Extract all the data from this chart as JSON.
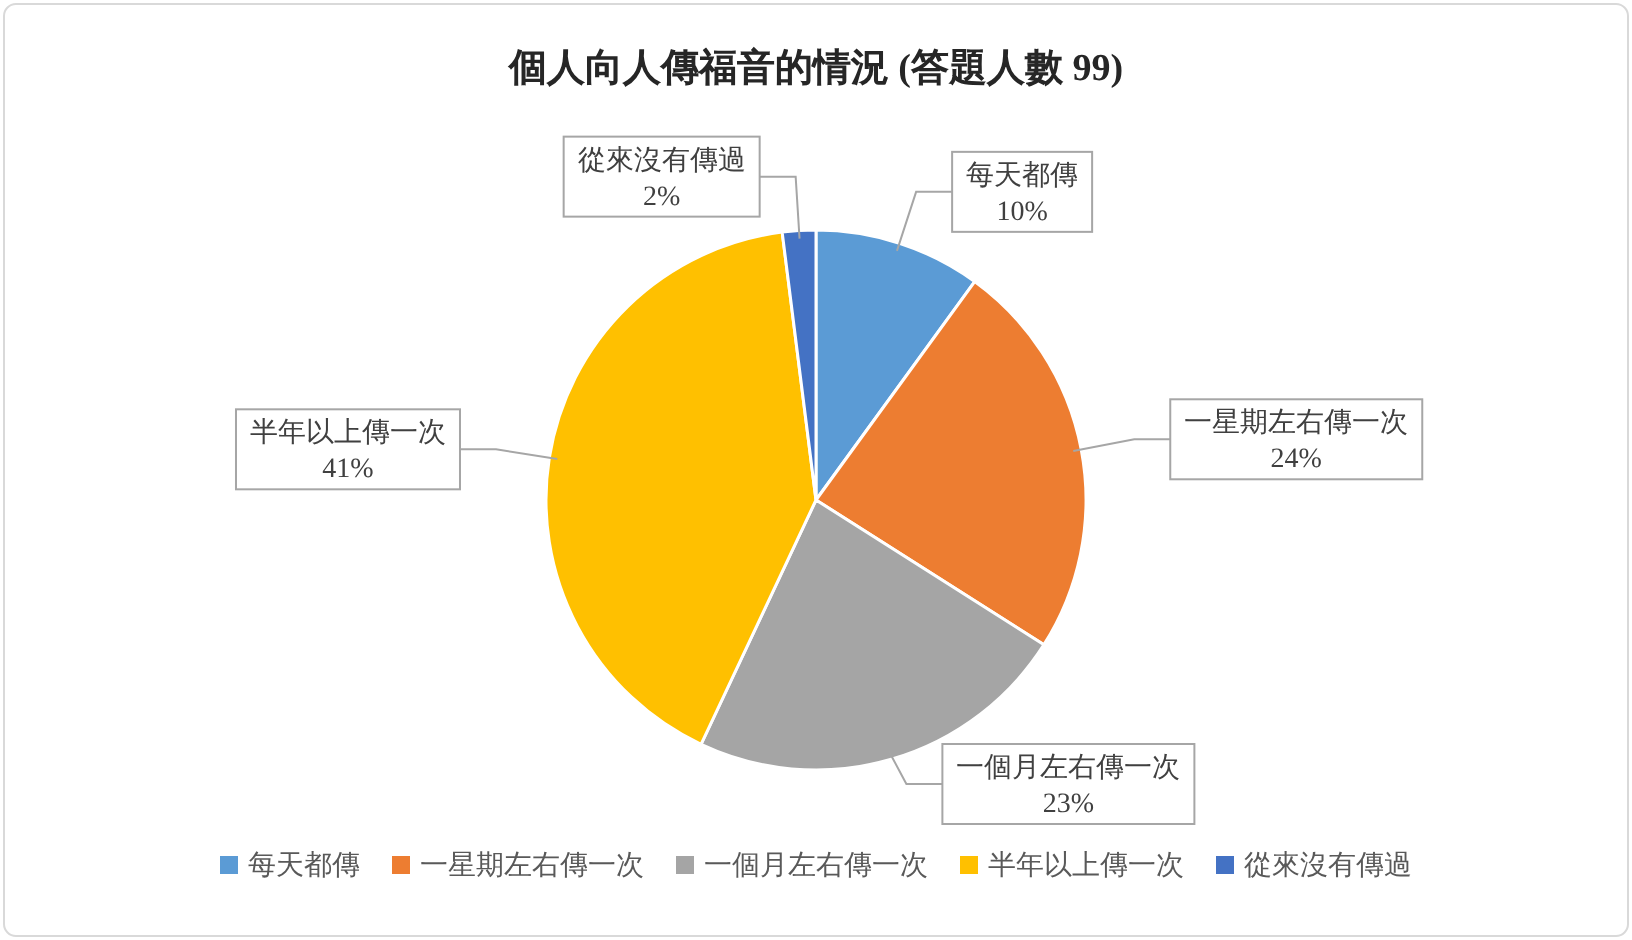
{
  "chart_data": {
    "type": "pie",
    "title": "個人向人傳福音的情況 (答題人數 99)",
    "categories": [
      "每天都傳",
      "一星期左右傳一次",
      "一個月左右傳一次",
      "半年以上傳一次",
      "從來沒有傳過"
    ],
    "values": [
      10,
      24,
      23,
      41,
      2
    ],
    "colors": [
      "#5b9bd5",
      "#ed7d31",
      "#a5a5a5",
      "#ffc000",
      "#4472c4"
    ],
    "value_labels": [
      "10%",
      "24%",
      "23%",
      "41%",
      "2%"
    ],
    "legend": "bottom"
  }
}
